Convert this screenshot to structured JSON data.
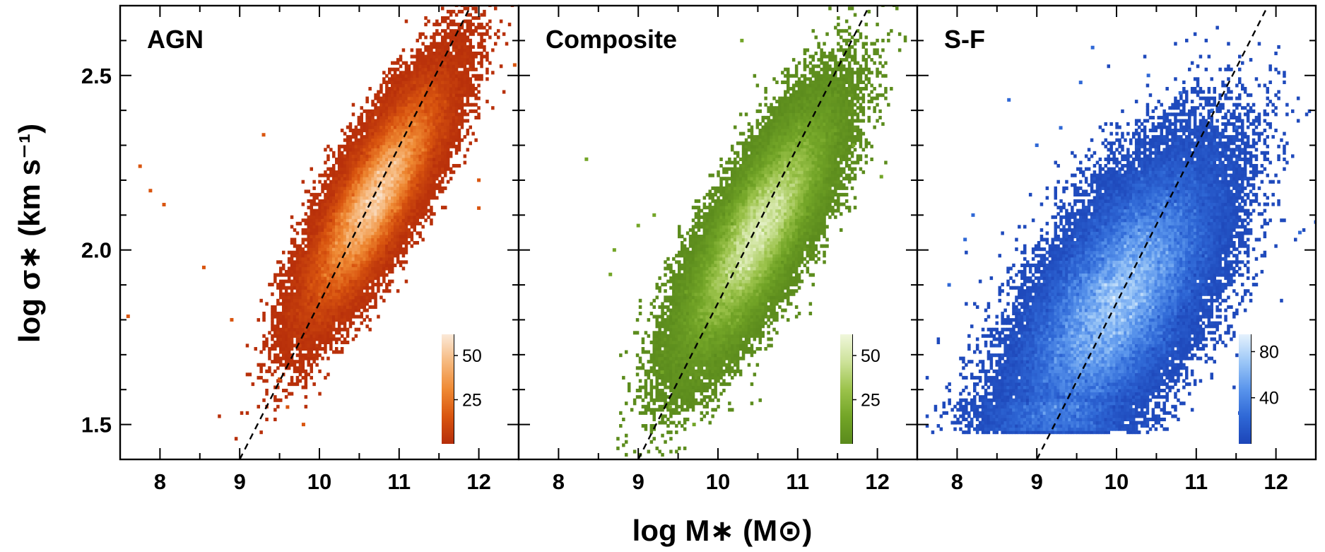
{
  "chart_data": {
    "type": "heatmap",
    "xlabel": "log M∗ (M⊙)",
    "ylabel": "log σ∗ (km s⁻¹)",
    "xlim": [
      7.5,
      12.5
    ],
    "ylim": [
      1.4,
      2.7
    ],
    "x_ticks": [
      8,
      9,
      10,
      11,
      12
    ],
    "y_ticks": [
      1.5,
      2.0,
      2.5
    ],
    "x_tick_labels": [
      "8",
      "9",
      "10",
      "11",
      "12"
    ],
    "y_tick_labels": [
      "1.5",
      "2.0",
      "2.5"
    ],
    "reference_line": {
      "style": "dashed",
      "points": [
        [
          9.0,
          1.4
        ],
        [
          11.9,
          2.7
        ]
      ]
    },
    "panels": [
      {
        "title": "AGN",
        "colormap": [
          "#b52d0a",
          "#d9550f",
          "#ef8a34",
          "#f6b97e",
          "#fbe9d8"
        ],
        "colorbar_range": [
          0,
          62
        ],
        "colorbar_ticks": [
          25,
          50
        ],
        "colorbar_tick_labels": [
          "25",
          "50"
        ],
        "density_center": [
          10.7,
          2.15
        ],
        "density_spread": [
          0.42,
          0.16
        ],
        "density_correlation": 0.82,
        "peak_count": 60,
        "outliers": [
          [
            7.6,
            1.81
          ],
          [
            7.75,
            2.24
          ],
          [
            7.88,
            2.17
          ],
          [
            8.05,
            2.13
          ],
          [
            8.55,
            1.95
          ],
          [
            8.9,
            1.8
          ],
          [
            9.3,
            2.33
          ],
          [
            12.0,
            2.12
          ],
          [
            12.0,
            2.2
          ],
          [
            12.45,
            2.53
          ],
          [
            9.6,
            1.55
          ],
          [
            9.8,
            1.5
          ],
          [
            9.5,
            1.63
          ]
        ]
      },
      {
        "title": "Composite",
        "colormap": [
          "#5a8a1c",
          "#73a527",
          "#9cc34c",
          "#cde29a",
          "#f0f7dc"
        ],
        "colorbar_range": [
          0,
          62
        ],
        "colorbar_ticks": [
          25,
          50
        ],
        "colorbar_tick_labels": [
          "25",
          "50"
        ],
        "density_center": [
          10.5,
          2.05
        ],
        "density_spread": [
          0.45,
          0.17
        ],
        "density_correlation": 0.8,
        "peak_count": 58,
        "outliers": [
          [
            8.35,
            2.26
          ],
          [
            8.65,
            1.93
          ],
          [
            8.7,
            2.0
          ],
          [
            9.0,
            2.07
          ],
          [
            9.2,
            2.1
          ],
          [
            9.6,
            1.88
          ],
          [
            12.05,
            2.21
          ],
          [
            11.7,
            2.3
          ],
          [
            9.3,
            1.65
          ],
          [
            9.4,
            1.55
          ],
          [
            9.7,
            1.5
          ],
          [
            10.3,
            2.6
          ]
        ]
      },
      {
        "title": "S-F",
        "colormap": [
          "#1c45b8",
          "#2f68d6",
          "#5a95ec",
          "#9cc7f7",
          "#e5f2fd"
        ],
        "colorbar_range": [
          0,
          95
        ],
        "colorbar_ticks": [
          40,
          80
        ],
        "colorbar_tick_labels": [
          "40",
          "80"
        ],
        "density_center": [
          10.0,
          1.85
        ],
        "density_spread": [
          0.62,
          0.2
        ],
        "density_correlation": 0.65,
        "peak_count": 92,
        "outliers": [
          [
            8.65,
            2.43
          ],
          [
            9.0,
            2.3
          ],
          [
            9.3,
            2.35
          ],
          [
            9.7,
            2.58
          ],
          [
            10.4,
            2.5
          ],
          [
            11.2,
            2.4
          ],
          [
            11.5,
            2.35
          ],
          [
            12.3,
            2.05
          ],
          [
            12.5,
            2.08
          ],
          [
            8.2,
            2.1
          ],
          [
            7.9,
            1.9
          ],
          [
            8.1,
            2.03
          ],
          [
            9.55,
            2.48
          ],
          [
            10.8,
            2.45
          ]
        ]
      }
    ]
  }
}
